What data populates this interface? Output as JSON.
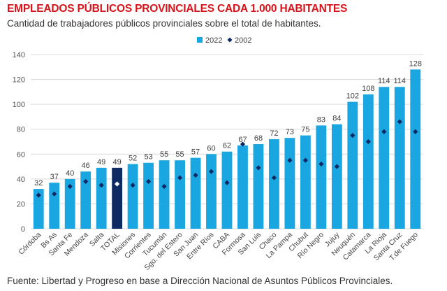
{
  "header": {
    "title": "EMPLEADOS PÚBLICOS PROVINCIALES CADA 1.000 HABITANTES",
    "subtitle": "Cantidad de trabajadores públicos provinciales sobre el total de habitantes."
  },
  "footer": {
    "source": "Fuente: Libertad y Progreso en base a Dirección Nacional de Asuntos Públicos Provinciales."
  },
  "colors": {
    "bar_2022": "#1aa6e0",
    "bar_total": "#0d2a63",
    "marker_2002": "#0d2a63",
    "marker_total": "#ffffff",
    "grid": "#d9d9d9"
  },
  "chart_data": {
    "type": "bar",
    "title": "EMPLEADOS PÚBLICOS PROVINCIALES CADA 1.000 HABITANTES",
    "xlabel": "",
    "ylabel": "",
    "ylim": [
      0,
      140
    ],
    "yticks": [
      0,
      20,
      40,
      60,
      80,
      100,
      120,
      140
    ],
    "grid": true,
    "legend_position": "top-right",
    "highlight_category": "TOTAL",
    "categories": [
      "Córdoba",
      "Bs As",
      "Santa Fe",
      "Mendoza",
      "Salta",
      "TOTAL",
      "Misiones",
      "Corrientes",
      "Tucumán",
      "Sgo. del Estero",
      "San Juan",
      "Entre Ríos",
      "CABA",
      "Formosa",
      "San Luis",
      "Chaco",
      "La Pampa",
      "Chubut",
      "Río Negro",
      "Jujuy",
      "Neuquén",
      "Catamarca",
      "La Rioja",
      "Santa Cruz",
      "T.de Fuego"
    ],
    "series": [
      {
        "name": "2022",
        "kind": "bar",
        "values": [
          32,
          37,
          40,
          46,
          49,
          49,
          52,
          53,
          55,
          55,
          57,
          60,
          62,
          67,
          68,
          72,
          73,
          75,
          83,
          84,
          102,
          108,
          114,
          114,
          128
        ]
      },
      {
        "name": "2002",
        "kind": "marker",
        "values": [
          27,
          28,
          34,
          38,
          35,
          36,
          35,
          38,
          34,
          41,
          43,
          46,
          37,
          68,
          49,
          41,
          55,
          55,
          52,
          50,
          75,
          70,
          78,
          86,
          78
        ]
      }
    ]
  }
}
